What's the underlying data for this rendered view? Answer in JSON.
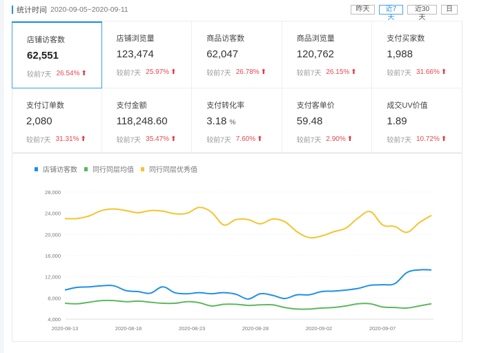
{
  "header": {
    "title": "统计时间",
    "date_range": "2020-09-05~2020-09-11"
  },
  "period_buttons": [
    {
      "label": "昨天",
      "active": false
    },
    {
      "label": "近7天",
      "active": true
    },
    {
      "label": "近30天",
      "active": false
    },
    {
      "label": "日",
      "active": false
    }
  ],
  "metrics": [
    {
      "label": "店铺访客数",
      "value": "62,551",
      "unit": "",
      "compare_label": "较前7天",
      "change": "26.54%",
      "trend": "up",
      "selected": true
    },
    {
      "label": "店铺浏览量",
      "value": "123,474",
      "unit": "",
      "compare_label": "较前7天",
      "change": "25.97%",
      "trend": "up"
    },
    {
      "label": "商品访客数",
      "value": "62,047",
      "unit": "",
      "compare_label": "较前7天",
      "change": "26.78%",
      "trend": "up"
    },
    {
      "label": "商品浏览量",
      "value": "120,762",
      "unit": "",
      "compare_label": "较前7天",
      "change": "26.15%",
      "trend": "up"
    },
    {
      "label": "支付买家数",
      "value": "1,988",
      "unit": "",
      "compare_label": "较前7天",
      "change": "31.66%",
      "trend": "up"
    },
    {
      "label": "支付订单数",
      "value": "2,080",
      "unit": "",
      "compare_label": "较前7天",
      "change": "31.31%",
      "trend": "up"
    },
    {
      "label": "支付金额",
      "value": "118,248.60",
      "unit": "",
      "compare_label": "较前7天",
      "change": "35.47%",
      "trend": "up"
    },
    {
      "label": "支付转化率",
      "value": "3.18",
      "unit": "%",
      "compare_label": "较前7天",
      "change": "7.60%",
      "trend": "up"
    },
    {
      "label": "支付客单价",
      "value": "59.48",
      "unit": "",
      "compare_label": "较前7天",
      "change": "2.90%",
      "trend": "up"
    },
    {
      "label": "成交UV价值",
      "value": "1.89",
      "unit": "",
      "compare_label": "较前7天",
      "change": "10.72%",
      "trend": "up"
    }
  ],
  "icons": {
    "trend_up": "⬆"
  },
  "colors": {
    "accent": "#1e8fe0",
    "up": "#e8474f",
    "series_store": "#1e8fe6",
    "series_avg": "#5cb85c",
    "series_excellent": "#f5c42c"
  },
  "chart_data": {
    "type": "line",
    "title": "",
    "xlabel": "",
    "ylabel": "",
    "ylim": [
      4000,
      28000
    ],
    "yticks": [
      4000,
      8000,
      12000,
      16000,
      20000,
      24000,
      28000
    ],
    "ytick_labels": [
      "4,000",
      "8,000",
      "12,000",
      "16,000",
      "20,000",
      "24,000",
      "28,000"
    ],
    "xtick_labels": [
      "2020-08-13",
      "2020-08-18",
      "2020-08-23",
      "2020-08-28",
      "2020-09-02",
      "2020-09-07"
    ],
    "grid": true,
    "legend_position": "top-left",
    "x": [
      "2020-08-13",
      "2020-08-14",
      "2020-08-15",
      "2020-08-16",
      "2020-08-17",
      "2020-08-18",
      "2020-08-19",
      "2020-08-20",
      "2020-08-21",
      "2020-08-22",
      "2020-08-23",
      "2020-08-24",
      "2020-08-25",
      "2020-08-26",
      "2020-08-27",
      "2020-08-28",
      "2020-08-29",
      "2020-08-30",
      "2020-08-31",
      "2020-09-01",
      "2020-09-02",
      "2020-09-03",
      "2020-09-04",
      "2020-09-05",
      "2020-09-06",
      "2020-09-07",
      "2020-09-08",
      "2020-09-09",
      "2020-09-10",
      "2020-09-11",
      "2020-09-12"
    ],
    "series": [
      {
        "name": "店铺访客数",
        "color": "#1e8fe6",
        "values": [
          9500,
          10000,
          10100,
          10300,
          10300,
          9400,
          9200,
          8900,
          10100,
          9000,
          8800,
          9000,
          8800,
          9000,
          8700,
          7800,
          8800,
          8500,
          7900,
          8600,
          8600,
          9200,
          9300,
          9500,
          9800,
          10400,
          10500,
          10700,
          12800,
          13300,
          13300
        ]
      },
      {
        "name": "同行同层均值",
        "color": "#5cb85c",
        "values": [
          7000,
          6900,
          7200,
          7500,
          7500,
          7300,
          7400,
          7200,
          7000,
          7000,
          7300,
          7100,
          6500,
          6800,
          6800,
          6600,
          6700,
          6700,
          6200,
          5900,
          5900,
          6100,
          6200,
          6500,
          6900,
          6900,
          6300,
          6200,
          6100,
          6500,
          6900
        ]
      },
      {
        "name": "同行同层优秀值",
        "color": "#f5c42c",
        "values": [
          23000,
          23000,
          23500,
          24500,
          24800,
          24500,
          24100,
          24500,
          24400,
          23900,
          24000,
          25100,
          24200,
          21800,
          22800,
          22800,
          22000,
          22900,
          22400,
          20500,
          19400,
          19700,
          20500,
          21200,
          23100,
          24300,
          21800,
          21500,
          20400,
          22200,
          23600
        ]
      }
    ]
  }
}
